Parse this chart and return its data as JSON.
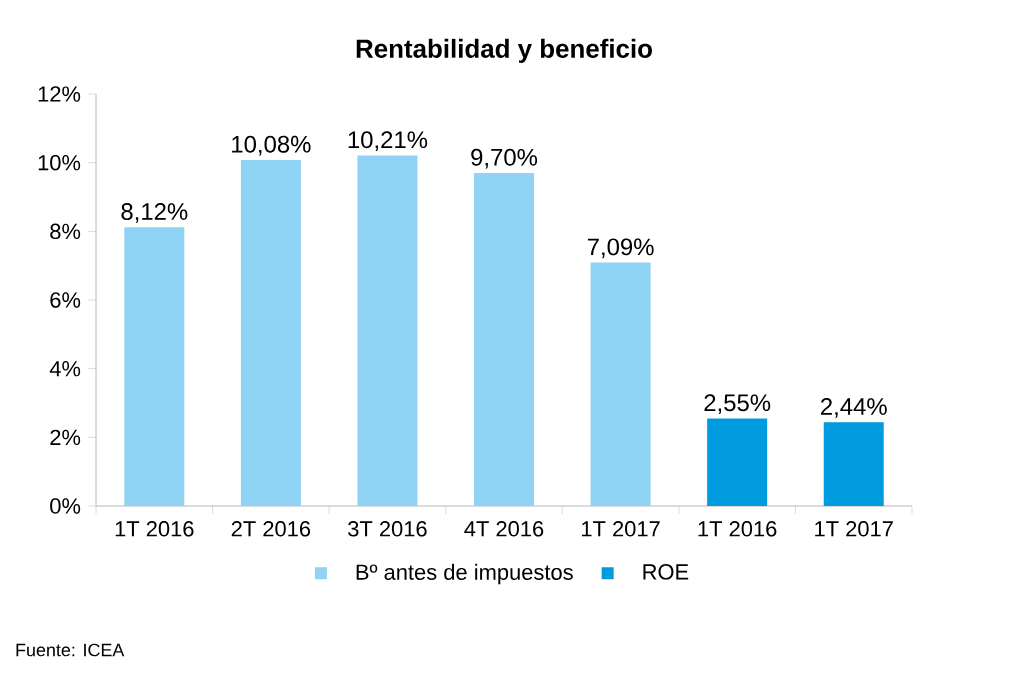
{
  "chart_data": {
    "type": "bar",
    "title": "Rentabilidad y beneficio",
    "categories": [
      "1T 2016",
      "2T 2016",
      "3T 2016",
      "4T 2016",
      "1T 2017",
      "1T 2016",
      "1T 2017"
    ],
    "series": [
      {
        "name": "Bº antes de impuestos",
        "color": "#8fd3f5",
        "values": [
          8.12,
          10.08,
          10.21,
          9.7,
          7.09,
          null,
          null
        ],
        "value_labels": [
          "8,12%",
          "10,08%",
          "10,21%",
          "9,70%",
          "7,09%",
          null,
          null
        ]
      },
      {
        "name": "ROE",
        "color": "#009ade",
        "values": [
          null,
          null,
          null,
          null,
          null,
          2.55,
          2.44
        ],
        "value_labels": [
          null,
          null,
          null,
          null,
          null,
          "2,55%",
          "2,44%"
        ]
      }
    ],
    "ylim": [
      0,
      12
    ],
    "yticks": [
      {
        "value": 0,
        "label": "0%"
      },
      {
        "value": 2,
        "label": "2%"
      },
      {
        "value": 4,
        "label": "4%"
      },
      {
        "value": 6,
        "label": "6%"
      },
      {
        "value": 8,
        "label": "8%"
      },
      {
        "value": 10,
        "label": "10%"
      },
      {
        "value": 12,
        "label": "12%"
      }
    ],
    "legend": "bottom",
    "annotations": [
      "Fuente: ICEA"
    ]
  }
}
